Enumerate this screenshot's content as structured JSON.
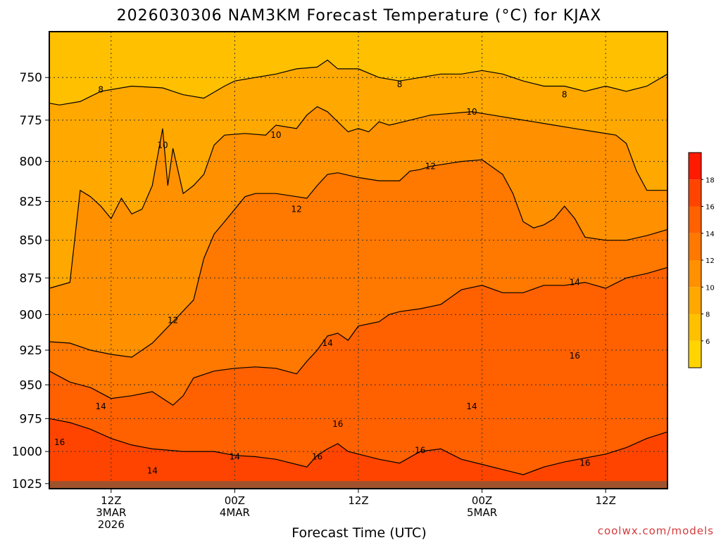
{
  "chart_data": {
    "type": "heatmap",
    "title": "2026030306 NAM3KM Forecast Temperature (°C) for KJAX",
    "xlabel": "Forecast Time (UTC)",
    "ylabel": "",
    "x_ticks": [
      {
        "hour": 6,
        "lines": [
          "12Z",
          "3MAR",
          "2026"
        ]
      },
      {
        "hour": 18,
        "lines": [
          "00Z",
          "4MAR"
        ]
      },
      {
        "hour": 30,
        "lines": [
          "12Z"
        ]
      },
      {
        "hour": 42,
        "lines": [
          "00Z",
          "5MAR"
        ]
      },
      {
        "hour": 54,
        "lines": [
          "12Z"
        ]
      }
    ],
    "xlim": [
      0,
      60
    ],
    "y_ticks": [
      750,
      775,
      800,
      825,
      850,
      875,
      900,
      925,
      950,
      975,
      1000,
      1025
    ],
    "ylim": [
      1029,
      724
    ],
    "y_scale": "log",
    "grid": true,
    "colorbar": {
      "levels": [
        6,
        8,
        10,
        12,
        14,
        16,
        18
      ],
      "colors": [
        "#ffd400",
        "#ffc000",
        "#ffa800",
        "#ff9000",
        "#ff7800",
        "#ff6000",
        "#ff4400",
        "#ff1a00"
      ]
    },
    "contours": [
      {
        "level": 8,
        "points": [
          [
            0,
            765
          ],
          [
            1,
            766
          ],
          [
            3,
            764
          ],
          [
            5,
            758
          ],
          [
            8,
            755
          ],
          [
            11,
            756
          ],
          [
            13,
            760
          ],
          [
            15,
            762
          ],
          [
            17,
            755
          ],
          [
            18,
            752
          ],
          [
            20,
            750
          ],
          [
            22,
            748
          ],
          [
            24,
            745
          ],
          [
            26,
            744
          ],
          [
            27,
            740
          ],
          [
            28,
            745
          ],
          [
            30,
            745
          ],
          [
            32,
            750
          ],
          [
            34,
            752
          ],
          [
            36,
            750
          ],
          [
            38,
            748
          ],
          [
            40,
            748
          ],
          [
            42,
            746
          ],
          [
            44,
            748
          ],
          [
            46,
            752
          ],
          [
            48,
            755
          ],
          [
            50,
            755
          ],
          [
            52,
            758
          ],
          [
            54,
            755
          ],
          [
            56,
            758
          ],
          [
            58,
            755
          ],
          [
            60,
            748
          ]
        ],
        "labels": [
          {
            "x": 5,
            "p": 757,
            "text": "8"
          },
          {
            "x": 34,
            "p": 754,
            "text": "8"
          },
          {
            "x": 50,
            "p": 760,
            "text": "8"
          }
        ]
      },
      {
        "level": 10,
        "points": [
          [
            0,
            882
          ],
          [
            2,
            878
          ],
          [
            3,
            818
          ],
          [
            4,
            822
          ],
          [
            5,
            828
          ],
          [
            6,
            836
          ],
          [
            7,
            823
          ],
          [
            8,
            833
          ],
          [
            9,
            830
          ],
          [
            10,
            815
          ],
          [
            11,
            780
          ],
          [
            11.5,
            815
          ],
          [
            12,
            792
          ],
          [
            13,
            820
          ],
          [
            14,
            815
          ],
          [
            15,
            808
          ],
          [
            16,
            790
          ],
          [
            17,
            784
          ],
          [
            19,
            783
          ],
          [
            21,
            784
          ],
          [
            22,
            778
          ],
          [
            24,
            780
          ],
          [
            25,
            772
          ],
          [
            26,
            767
          ],
          [
            27,
            770
          ],
          [
            28,
            776
          ],
          [
            29,
            782
          ],
          [
            30,
            780
          ],
          [
            31,
            782
          ],
          [
            32,
            776
          ],
          [
            33,
            778
          ],
          [
            35,
            775
          ],
          [
            37,
            772
          ],
          [
            39,
            771
          ],
          [
            41,
            770
          ],
          [
            43,
            772
          ],
          [
            45,
            774
          ],
          [
            47,
            776
          ],
          [
            49,
            778
          ],
          [
            51,
            780
          ],
          [
            53,
            782
          ],
          [
            55,
            784
          ],
          [
            56,
            789
          ],
          [
            57,
            806
          ],
          [
            58,
            818
          ],
          [
            60,
            818
          ]
        ],
        "labels": [
          {
            "x": 11,
            "p": 790,
            "text": "10"
          },
          {
            "x": 22,
            "p": 784,
            "text": "10"
          },
          {
            "x": 41,
            "p": 770,
            "text": "10"
          }
        ]
      },
      {
        "level": 12,
        "points": [
          [
            0,
            919
          ],
          [
            2,
            920
          ],
          [
            4,
            925
          ],
          [
            6,
            928
          ],
          [
            8,
            930
          ],
          [
            10,
            920
          ],
          [
            12,
            905
          ],
          [
            14,
            890
          ],
          [
            15,
            862
          ],
          [
            16,
            846
          ],
          [
            17,
            838
          ],
          [
            18,
            830
          ],
          [
            19,
            822
          ],
          [
            20,
            820
          ],
          [
            22,
            820
          ],
          [
            24,
            822
          ],
          [
            25,
            823
          ],
          [
            26,
            815
          ],
          [
            27,
            808
          ],
          [
            28,
            807
          ],
          [
            30,
            810
          ],
          [
            32,
            812
          ],
          [
            34,
            812
          ],
          [
            35,
            806
          ],
          [
            36,
            805
          ],
          [
            37,
            803
          ],
          [
            38,
            802
          ],
          [
            40,
            800
          ],
          [
            42,
            799
          ],
          [
            44,
            808
          ],
          [
            45,
            820
          ],
          [
            46,
            838
          ],
          [
            47,
            842
          ],
          [
            48,
            840
          ],
          [
            49,
            836
          ],
          [
            50,
            828
          ],
          [
            51,
            836
          ],
          [
            52,
            848
          ],
          [
            54,
            850
          ],
          [
            56,
            850
          ],
          [
            58,
            847
          ],
          [
            60,
            843
          ]
        ],
        "labels": [
          {
            "x": 12,
            "p": 904,
            "text": "12"
          },
          {
            "x": 24,
            "p": 830,
            "text": "12"
          },
          {
            "x": 37,
            "p": 803,
            "text": "12"
          }
        ]
      },
      {
        "level": 14,
        "points": [
          [
            0,
            940
          ],
          [
            2,
            948
          ],
          [
            4,
            952
          ],
          [
            6,
            960
          ],
          [
            8,
            958
          ],
          [
            10,
            955
          ],
          [
            12,
            965
          ],
          [
            13,
            958
          ],
          [
            14,
            945
          ],
          [
            16,
            940
          ],
          [
            18,
            938
          ],
          [
            20,
            937
          ],
          [
            22,
            938
          ],
          [
            24,
            942
          ],
          [
            25,
            933
          ],
          [
            26,
            925
          ],
          [
            27,
            915
          ],
          [
            28,
            913
          ],
          [
            29,
            918
          ],
          [
            30,
            908
          ],
          [
            32,
            905
          ],
          [
            33,
            900
          ],
          [
            34,
            898
          ],
          [
            36,
            896
          ],
          [
            38,
            893
          ],
          [
            40,
            883
          ],
          [
            42,
            880
          ],
          [
            44,
            885
          ],
          [
            46,
            885
          ],
          [
            48,
            880
          ],
          [
            50,
            880
          ],
          [
            52,
            878
          ],
          [
            54,
            882
          ],
          [
            56,
            875
          ],
          [
            58,
            872
          ],
          [
            60,
            868
          ]
        ],
        "labels": [
          {
            "x": 5,
            "p": 966,
            "text": "14"
          },
          {
            "x": 27,
            "p": 920,
            "text": "14"
          },
          {
            "x": 51,
            "p": 878,
            "text": "14"
          }
        ]
      },
      {
        "level": 16,
        "points": [
          [
            0,
            975
          ],
          [
            2,
            978
          ],
          [
            4,
            983
          ],
          [
            6,
            990
          ],
          [
            8,
            995
          ],
          [
            10,
            998
          ],
          [
            13,
            1000
          ],
          [
            16,
            1000
          ],
          [
            18,
            1003
          ],
          [
            20,
            1004
          ],
          [
            22,
            1006
          ],
          [
            24,
            1010
          ],
          [
            25,
            1012
          ],
          [
            26,
            1003
          ],
          [
            27,
            998
          ],
          [
            28,
            994
          ],
          [
            29,
            1000
          ],
          [
            30,
            1002
          ],
          [
            32,
            1006
          ],
          [
            34,
            1009
          ],
          [
            36,
            1000
          ],
          [
            38,
            998
          ],
          [
            40,
            1006
          ],
          [
            42,
            1010
          ],
          [
            44,
            1014
          ],
          [
            46,
            1018
          ],
          [
            48,
            1012
          ],
          [
            50,
            1008
          ],
          [
            52,
            1005
          ],
          [
            54,
            1002
          ],
          [
            56,
            997
          ],
          [
            58,
            990
          ],
          [
            60,
            985
          ]
        ],
        "labels": [
          {
            "x": 26,
            "p": 1004,
            "text": "16"
          },
          {
            "x": 36,
            "p": 999,
            "text": "16"
          },
          {
            "x": 52,
            "p": 1009,
            "text": "16"
          }
        ]
      }
    ],
    "extra_labels": [
      {
        "x": 1,
        "p": 993,
        "text": "16"
      },
      {
        "x": 10,
        "p": 1015,
        "text": "14"
      },
      {
        "x": 18,
        "p": 1004,
        "text": "14"
      },
      {
        "x": 28,
        "p": 979,
        "text": "16"
      },
      {
        "x": 41,
        "p": 966,
        "text": "14"
      },
      {
        "x": 51,
        "p": 929,
        "text": "16"
      }
    ]
  },
  "credit": "coolwx.com/models"
}
